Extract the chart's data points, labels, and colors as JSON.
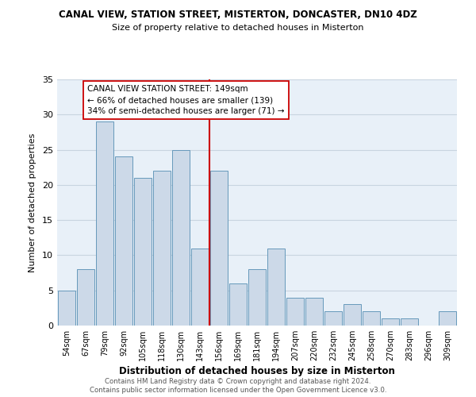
{
  "title": "CANAL VIEW, STATION STREET, MISTERTON, DONCASTER, DN10 4DZ",
  "subtitle": "Size of property relative to detached houses in Misterton",
  "xlabel": "Distribution of detached houses by size in Misterton",
  "ylabel": "Number of detached properties",
  "bar_labels": [
    "54sqm",
    "67sqm",
    "79sqm",
    "92sqm",
    "105sqm",
    "118sqm",
    "130sqm",
    "143sqm",
    "156sqm",
    "169sqm",
    "181sqm",
    "194sqm",
    "207sqm",
    "220sqm",
    "232sqm",
    "245sqm",
    "258sqm",
    "270sqm",
    "283sqm",
    "296sqm",
    "309sqm"
  ],
  "bar_values": [
    5,
    8,
    29,
    24,
    21,
    22,
    25,
    11,
    22,
    6,
    8,
    11,
    4,
    4,
    2,
    3,
    2,
    1,
    1,
    0,
    2
  ],
  "bar_color": "#ccd9e8",
  "bar_edge_color": "#6699bb",
  "reference_line_x": 7.5,
  "reference_line_color": "#cc0000",
  "annotation_line1": "CANAL VIEW STATION STREET: 149sqm",
  "annotation_line2": "← 66% of detached houses are smaller (139)",
  "annotation_line3": "34% of semi-detached houses are larger (71) →",
  "annotation_box_color": "#ffffff",
  "annotation_box_edge": "#cc0000",
  "ylim": [
    0,
    35
  ],
  "yticks": [
    0,
    5,
    10,
    15,
    20,
    25,
    30,
    35
  ],
  "footer_line1": "Contains HM Land Registry data © Crown copyright and database right 2024.",
  "footer_line2": "Contains public sector information licensed under the Open Government Licence v3.0.",
  "background_color": "#ffffff",
  "plot_bg_color": "#e8f0f8",
  "grid_color": "#c8d4e0"
}
